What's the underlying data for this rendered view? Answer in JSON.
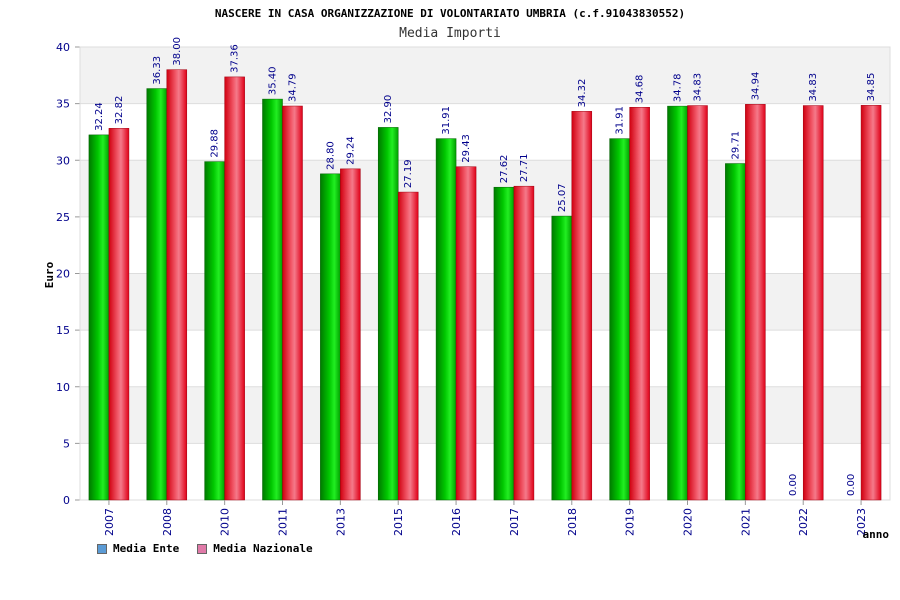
{
  "chart_data": {
    "type": "bar",
    "title": "NASCERE IN CASA ORGANIZZAZIONE DI VOLONTARIATO UMBRIA (c.f.91043830552)",
    "subtitle": "Media Importi",
    "xlabel": "anno",
    "ylabel": "Euro",
    "ylim": [
      0,
      40
    ],
    "yticks": [
      0,
      5,
      10,
      15,
      20,
      25,
      30,
      35,
      40
    ],
    "categories": [
      "2007",
      "2008",
      "2010",
      "2011",
      "2013",
      "2015",
      "2016",
      "2017",
      "2018",
      "2019",
      "2020",
      "2021",
      "2022",
      "2023"
    ],
    "series": [
      {
        "name": "Media Ente",
        "values": [
          32.24,
          36.33,
          29.88,
          35.4,
          28.8,
          32.9,
          31.91,
          27.62,
          25.07,
          31.91,
          34.78,
          29.71,
          0.0,
          0.0
        ],
        "labels": [
          "32.24",
          "36.33",
          "29.88",
          "35.40",
          "28.80",
          "32.90",
          "31.91",
          "27.62",
          "25.07",
          "31.91",
          "34.78",
          "29.71",
          "0.00",
          "0.00"
        ],
        "bar_color": "#00b000",
        "legend_color": "#5b9bd5"
      },
      {
        "name": "Media Nazionale",
        "values": [
          32.82,
          38.0,
          37.36,
          34.79,
          29.24,
          27.19,
          29.43,
          27.71,
          34.32,
          34.68,
          34.83,
          34.94,
          34.83,
          34.85
        ],
        "labels": [
          "32.82",
          "38.00",
          "37.36",
          "34.79",
          "29.24",
          "27.19",
          "29.43",
          "27.71",
          "34.32",
          "34.68",
          "34.83",
          "34.94",
          "34.83",
          "34.85"
        ],
        "bar_color": "#e8202a",
        "legend_color": "#e07aa8"
      }
    ],
    "grid": true,
    "legend_position": "bottom-left"
  }
}
